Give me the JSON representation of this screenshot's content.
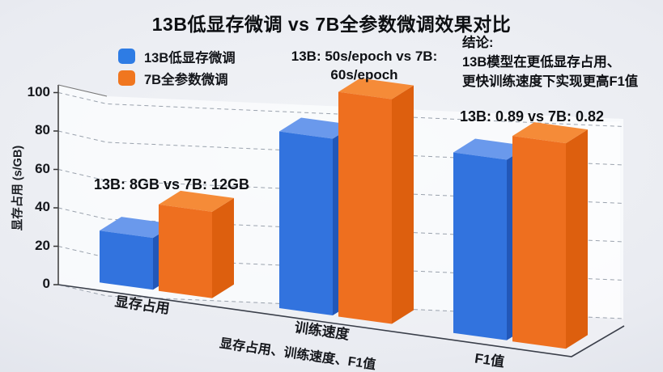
{
  "title": "13B低显存微调 vs 7B全参数微调效果对比",
  "legend": {
    "items": [
      {
        "label": "13B低显存微调",
        "color": "#2E7CE4"
      },
      {
        "label": "7B全参数微调",
        "color": "#F0761F"
      }
    ]
  },
  "annotations": {
    "memory": "13B: 8GB vs 7B: 12GB",
    "speed_line1": "13B: 50s/epoch vs 7B:",
    "speed_line2": "60s/epoch",
    "conclusion_title": "结论:",
    "conclusion_line1": "13B模型在更低显存占用、",
    "conclusion_line2": "更快训练速度下实现更高F1值",
    "f1": "13B: 0.89 vs 7B: 0.82"
  },
  "chart_data": {
    "type": "bar",
    "projection": "3d",
    "title": "13B低显存微调 vs 7B全参数微调效果对比",
    "categories": [
      "显存占用",
      "训练速度",
      "F1值"
    ],
    "xlabel": "显存占用、训练速度、F1值",
    "ylabel": "显存占用 (s/GB)",
    "yticks": [
      0,
      20,
      40,
      60,
      80,
      100
    ],
    "ylim": [
      0,
      100
    ],
    "grid": "dashed",
    "legend_position": "top-left",
    "series": [
      {
        "name": "13B低显存微调",
        "stated_values": {
          "显存占用": "8GB",
          "训练速度": "50s/epoch",
          "F1值": "0.89"
        },
        "drawn_heights": [
          27,
          92,
          94
        ],
        "colors": {
          "top": "#6A99EC",
          "front": "#3273DE",
          "side": "#2257B8"
        }
      },
      {
        "name": "7B全参数微调",
        "stated_values": {
          "显存占用": "12GB",
          "训练速度": "60s/epoch",
          "F1值": "0.82"
        },
        "drawn_heights": [
          45,
          117,
          107
        ],
        "colors": {
          "top": "#F58B38",
          "front": "#EE6F1F",
          "side": "#DD5F0E"
        }
      }
    ]
  }
}
